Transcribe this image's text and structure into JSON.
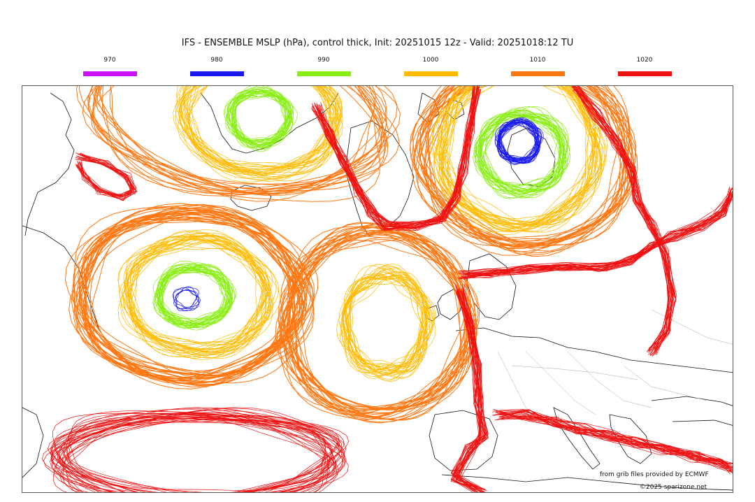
{
  "title": "IFS - ENSEMBLE MSLP (hPa), control thick, Init: 20251015 12z - Valid: 20251018:12 TU",
  "legend": [
    {
      "label": "970",
      "color": "#cc11ff"
    },
    {
      "label": "980",
      "color": "#1a1aee"
    },
    {
      "label": "990",
      "color": "#88ee11"
    },
    {
      "label": "1000",
      "color": "#ffbb00"
    },
    {
      "label": "1010",
      "color": "#ff7711"
    },
    {
      "label": "1020",
      "color": "#ee1111"
    }
  ],
  "credits": {
    "source": "from grib files provided by ECMWF",
    "copyright": "©2025 sparizone.net"
  }
}
